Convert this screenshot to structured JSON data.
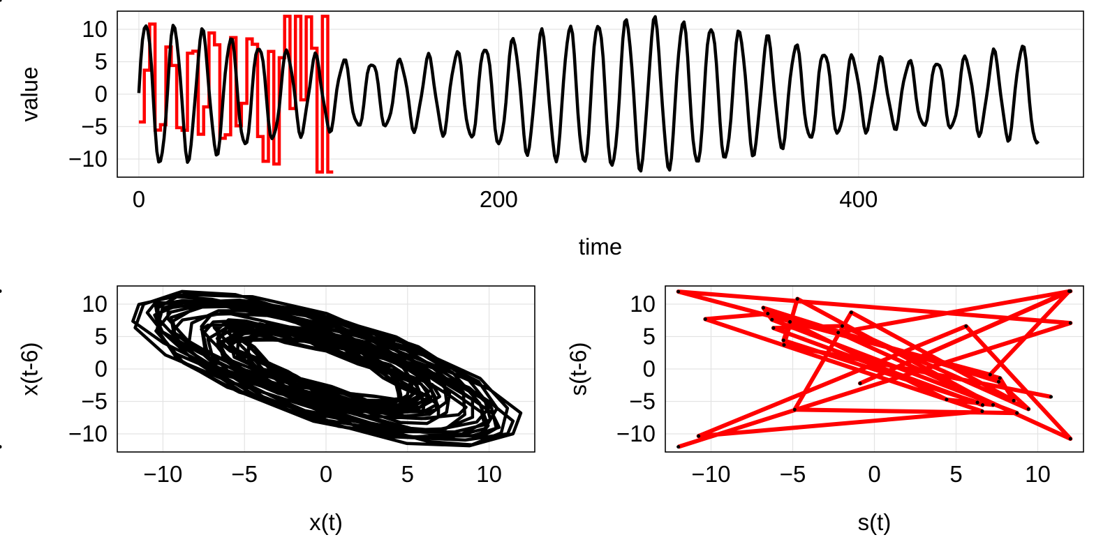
{
  "chart_data": [
    {
      "type": "line",
      "xlabel": "time",
      "ylabel": "value",
      "xlim": [
        -12,
        525
      ],
      "ylim": [
        -12.8,
        12.8
      ],
      "xticks": [
        0,
        200,
        400
      ],
      "yticks": [
        -10,
        -5,
        0,
        5,
        10
      ],
      "xtick_labels": [
        "0",
        "200",
        "400"
      ],
      "ytick_labels": [
        "−10",
        "−5",
        "0",
        "5",
        "10"
      ],
      "grid": true,
      "series": [
        {
          "color": "#ff0000",
          "kind": "step",
          "duration": 500,
          "hold_samples": 3
        },
        {
          "color": "#000000",
          "kind": "line",
          "duration": 500,
          "samples": 501
        }
      ]
    },
    {
      "type": "line",
      "xlabel": "x(t)",
      "ylabel": "x(t-6)",
      "xlim": [
        -12.8,
        12.8
      ],
      "ylim": [
        -12.8,
        12.8
      ],
      "xticks": [
        -10,
        -5,
        0,
        5,
        10
      ],
      "yticks": [
        -10,
        -5,
        0,
        5,
        10
      ],
      "xtick_labels": [
        "−10",
        "−5",
        "0",
        "5",
        "10"
      ],
      "ytick_labels": [
        "−10",
        "−5",
        "0",
        "5",
        "10"
      ],
      "grid": true,
      "delay": 6,
      "series": [
        {
          "color": "#000000",
          "source": "x"
        }
      ]
    },
    {
      "type": "scatter",
      "xlabel": "s(t)",
      "ylabel": "s(t-6)",
      "xlim": [
        -12.8,
        12.8
      ],
      "ylim": [
        -12.8,
        12.8
      ],
      "xticks": [
        -10,
        -5,
        0,
        5,
        10
      ],
      "yticks": [
        -10,
        -5,
        0,
        5,
        10
      ],
      "xtick_labels": [
        "−10",
        "−5",
        "0",
        "5",
        "10"
      ],
      "ytick_labels": [
        "−10",
        "−5",
        "0",
        "5",
        "10"
      ],
      "grid": true,
      "delay": 6,
      "series": [
        {
          "color": "#ff0000",
          "source": "s",
          "mode": "line"
        },
        {
          "color": "#000000",
          "source": "s",
          "mode": "markers"
        }
      ]
    }
  ]
}
